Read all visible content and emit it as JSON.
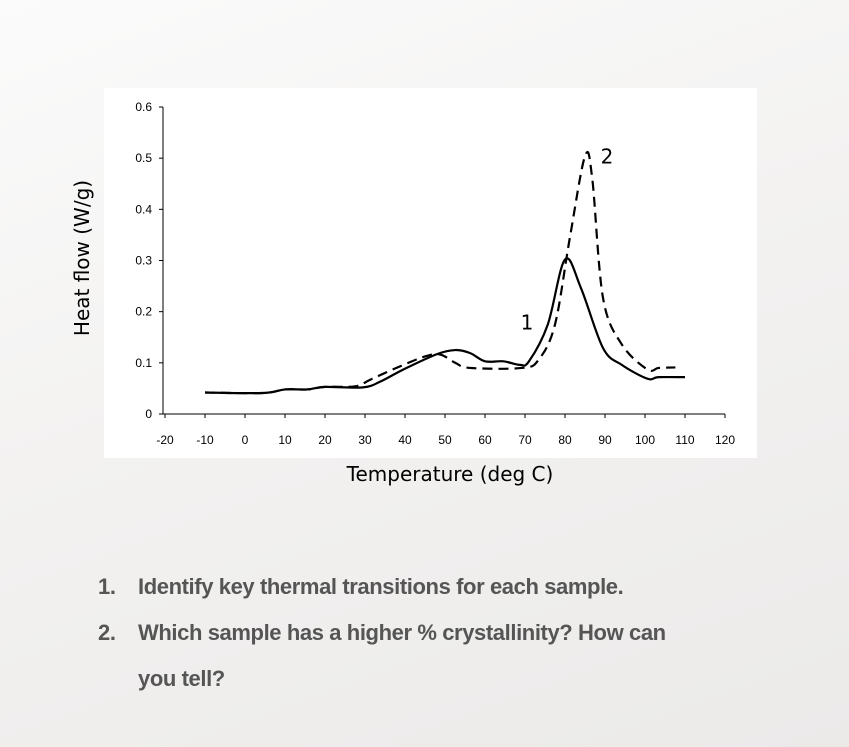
{
  "chart_data": {
    "type": "line",
    "title": "",
    "xlabel": "Temperature (deg C)",
    "ylabel": "Heat flow (W/g)",
    "xlim": [
      -20,
      120
    ],
    "ylim": [
      0,
      0.6
    ],
    "x_ticks": [
      "-20",
      "-10",
      "0",
      "10",
      "20",
      "30",
      "40",
      "50",
      "60",
      "70",
      "80",
      "90",
      "100",
      "110",
      "120"
    ],
    "y_ticks": [
      "0",
      "0.1",
      "0.2",
      "0.3",
      "0.4",
      "0.5",
      "0.6"
    ],
    "grid": false,
    "series": [
      {
        "name": "1",
        "style": "solid",
        "color": "#000000",
        "x": [
          -10,
          4.5,
          10,
          15.6,
          20,
          29.5,
          34,
          39.6,
          48,
          52.6,
          56.3,
          60,
          64.6,
          68.7,
          71,
          75.7,
          80,
          84,
          89.5,
          94.2,
          100.6,
          103.4,
          110
        ],
        "y": [
          0.042,
          0.041,
          0.048,
          0.048,
          0.053,
          0.052,
          0.064,
          0.087,
          0.117,
          0.125,
          0.119,
          0.103,
          0.103,
          0.096,
          0.103,
          0.175,
          0.302,
          0.246,
          0.129,
          0.096,
          0.069,
          0.072,
          0.072
        ]
      },
      {
        "name": "2",
        "style": "dashed",
        "color": "#000000",
        "x": [
          -10,
          4.5,
          10,
          15.6,
          20,
          27.6,
          31.3,
          37.8,
          45.2,
          48.9,
          52.6,
          56.3,
          69.2,
          73.4,
          77.5,
          81.2,
          85,
          86.8,
          89.5,
          94.2,
          100.6,
          103.4,
          107.6
        ],
        "y": [
          0.042,
          0.041,
          0.048,
          0.048,
          0.053,
          0.054,
          0.067,
          0.09,
          0.113,
          0.116,
          0.1,
          0.09,
          0.09,
          0.106,
          0.175,
          0.344,
          0.504,
          0.461,
          0.227,
          0.136,
          0.087,
          0.09,
          0.091
        ]
      }
    ],
    "annotations": [
      {
        "text": "1",
        "x": 70.5,
        "y": 0.165
      },
      {
        "text": "2",
        "x": 90.5,
        "y": 0.49
      }
    ]
  },
  "questions": [
    {
      "number": "1.",
      "text": "Identify key thermal transitions for each sample."
    },
    {
      "number": "2.",
      "text": "Which sample has a higher % crystallinity? How can",
      "text_cont": "you tell?"
    }
  ]
}
